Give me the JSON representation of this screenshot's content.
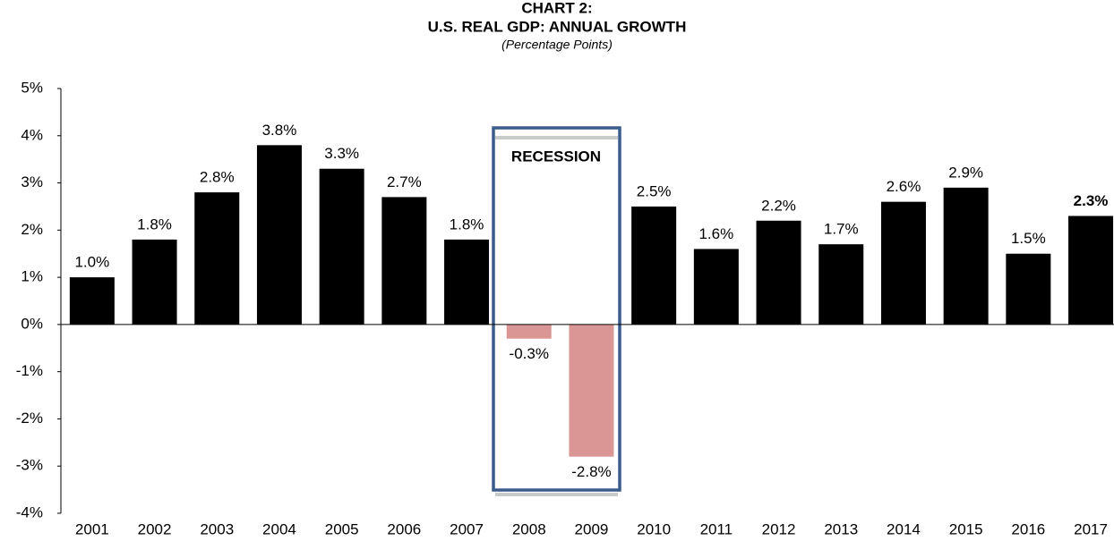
{
  "chart_data": {
    "type": "bar",
    "title_lines": [
      "CHART 2:",
      "U.S. REAL GDP: ANNUAL GROWTH"
    ],
    "subtitle": "(Percentage Points)",
    "annotation": "RECESSION",
    "categories": [
      "2001",
      "2002",
      "2003",
      "2004",
      "2005",
      "2006",
      "2007",
      "2008",
      "2009",
      "2010",
      "2011",
      "2012",
      "2013",
      "2014",
      "2015",
      "2016",
      "2017"
    ],
    "values": [
      1.0,
      1.8,
      2.8,
      3.8,
      3.3,
      2.7,
      1.8,
      -0.3,
      -2.8,
      2.5,
      1.6,
      2.2,
      1.7,
      2.6,
      2.9,
      1.5,
      2.3
    ],
    "value_labels": [
      "1.0%",
      "1.8%",
      "2.8%",
      "3.8%",
      "3.3%",
      "2.7%",
      "1.8%",
      "-0.3%",
      "-2.8%",
      "2.5%",
      "1.6%",
      "2.2%",
      "1.7%",
      "2.6%",
      "2.9%",
      "1.5%",
      "2.3%"
    ],
    "colors": [
      "#000000",
      "#000000",
      "#000000",
      "#000000",
      "#000000",
      "#000000",
      "#000000",
      "#d99694",
      "#d99694",
      "#000000",
      "#000000",
      "#000000",
      "#000000",
      "#000000",
      "#000000",
      "#000000",
      "#000000"
    ],
    "ylim": [
      -4,
      5
    ],
    "yticks": [
      {
        "value": 5,
        "label": "5%"
      },
      {
        "value": 4,
        "label": "4%"
      },
      {
        "value": 3,
        "label": "3%"
      },
      {
        "value": 2,
        "label": "2%"
      },
      {
        "value": 1,
        "label": "1%"
      },
      {
        "value": 0,
        "label": "0%"
      },
      {
        "value": -1,
        "label": "-1%"
      },
      {
        "value": -2,
        "label": "-2%"
      },
      {
        "value": -3,
        "label": "-3%"
      },
      {
        "value": -4,
        "label": "-4%"
      }
    ],
    "grid": false
  }
}
